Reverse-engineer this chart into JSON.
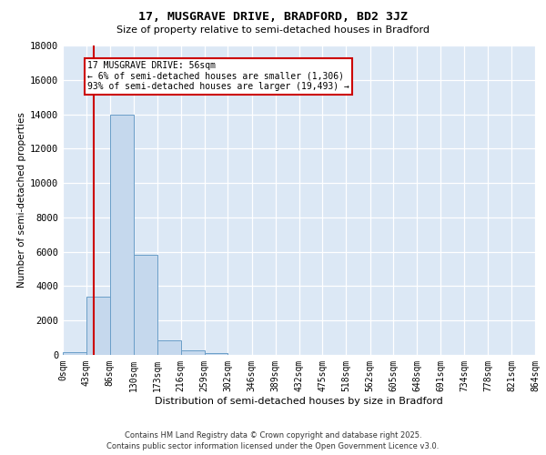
{
  "title_line1": "17, MUSGRAVE DRIVE, BRADFORD, BD2 3JZ",
  "title_line2": "Size of property relative to semi-detached houses in Bradford",
  "xlabel": "Distribution of semi-detached houses by size in Bradford",
  "ylabel": "Number of semi-detached properties",
  "property_size": 56,
  "property_label": "17 MUSGRAVE DRIVE: 56sqm",
  "annotation_smaller": "← 6% of semi-detached houses are smaller (1,306)",
  "annotation_larger": "93% of semi-detached houses are larger (19,493) →",
  "bins": [
    0,
    43,
    86,
    130,
    173,
    216,
    259,
    302,
    346,
    389,
    432,
    475,
    518,
    562,
    605,
    648,
    691,
    734,
    778,
    821,
    864
  ],
  "bin_labels": [
    "0sqm",
    "43sqm",
    "86sqm",
    "130sqm",
    "173sqm",
    "216sqm",
    "259sqm",
    "302sqm",
    "346sqm",
    "389sqm",
    "432sqm",
    "475sqm",
    "518sqm",
    "562sqm",
    "605sqm",
    "648sqm",
    "691sqm",
    "734sqm",
    "778sqm",
    "821sqm",
    "864sqm"
  ],
  "bar_heights": [
    150,
    3400,
    14000,
    5800,
    850,
    280,
    100,
    25,
    4,
    1,
    0,
    0,
    0,
    0,
    0,
    0,
    0,
    0,
    0,
    0
  ],
  "bar_color": "#c5d8ed",
  "bar_edge_color": "#6a9ec8",
  "redline_color": "#cc0000",
  "box_color": "#cc0000",
  "background_color": "#dce8f5",
  "ylim": [
    0,
    18000
  ],
  "yticks": [
    0,
    2000,
    4000,
    6000,
    8000,
    10000,
    12000,
    14000,
    16000,
    18000
  ],
  "footer_line1": "Contains HM Land Registry data © Crown copyright and database right 2025.",
  "footer_line2": "Contains public sector information licensed under the Open Government Licence v3.0."
}
